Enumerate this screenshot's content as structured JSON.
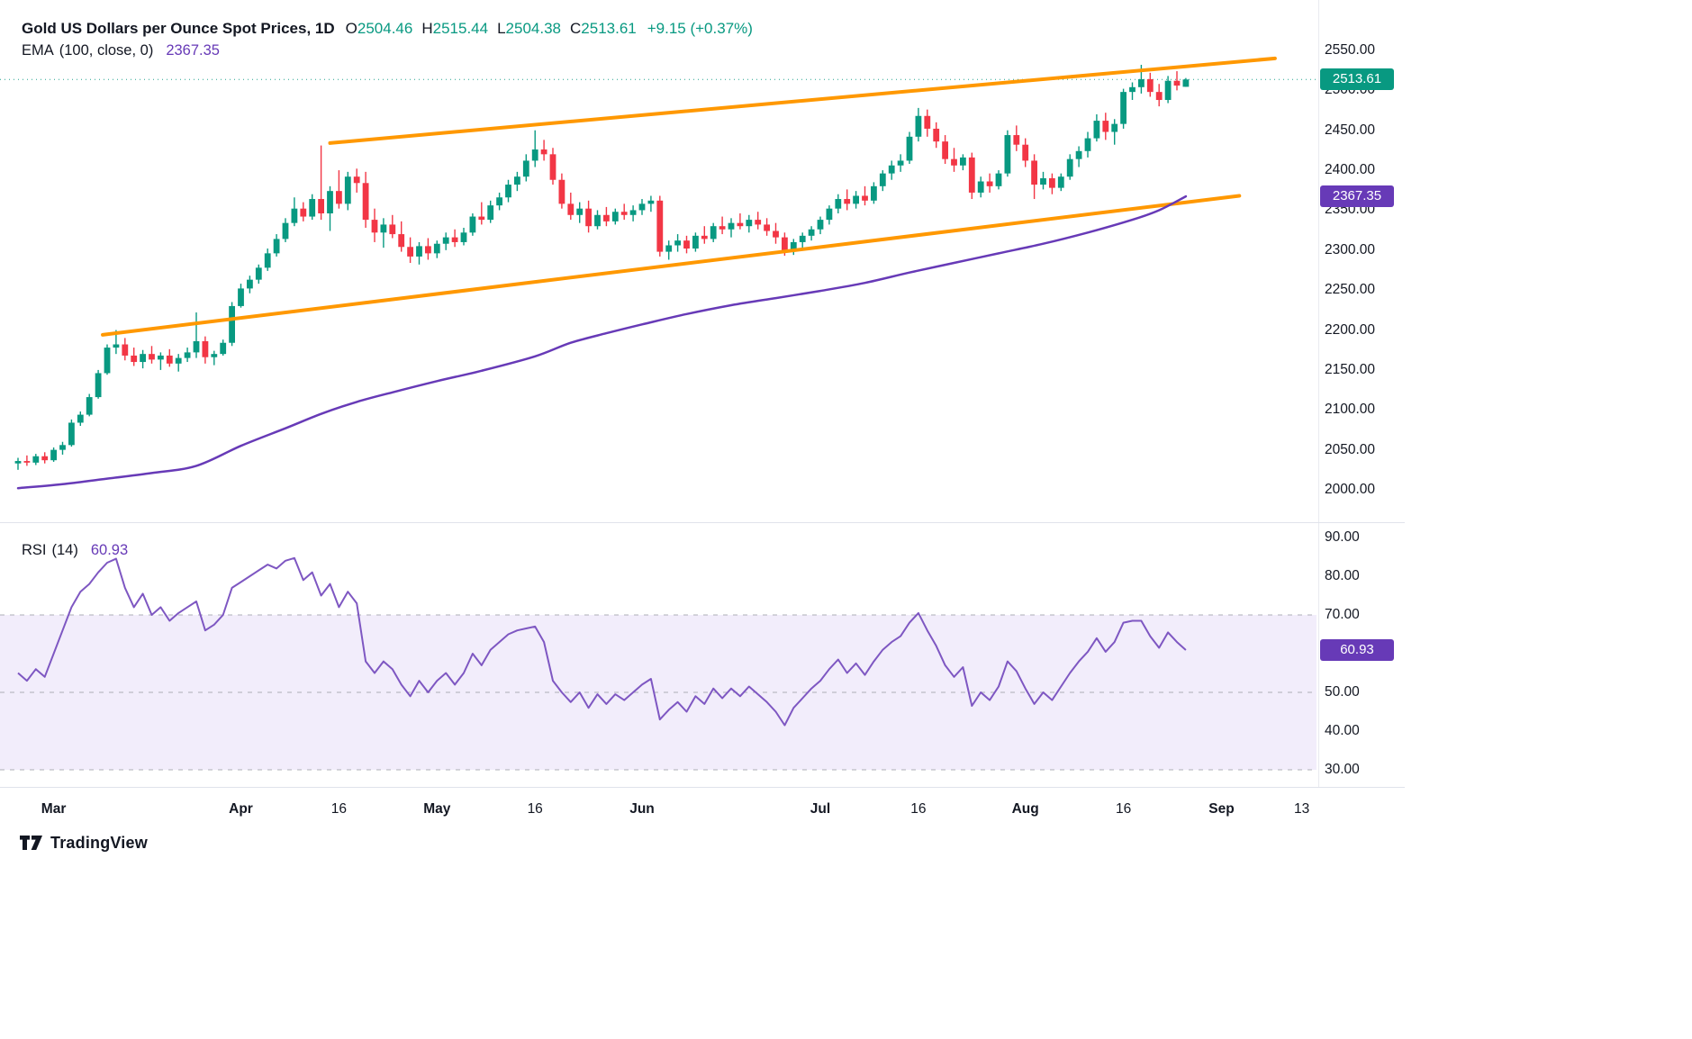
{
  "header": {
    "title": "Gold US Dollars per Ounce Spot Prices, 1D",
    "ohlc": [
      {
        "key": "O",
        "value": "2504.46"
      },
      {
        "key": "H",
        "value": "2515.44"
      },
      {
        "key": "L",
        "value": "2504.38"
      },
      {
        "key": "C",
        "value": "2513.61"
      }
    ],
    "change": "+9.15 (+0.37%)"
  },
  "ema_indicator": {
    "name": "EMA",
    "params": "(100, close, 0)",
    "value": "2367.35"
  },
  "rsi_indicator": {
    "name": "RSI",
    "params": "(14)",
    "value": "60.93"
  },
  "badges": {
    "price": {
      "text": "2513.61"
    },
    "ema": {
      "text": "2367.35"
    },
    "rsi": {
      "text": "60.93"
    }
  },
  "watermark": "TradingView",
  "colors": {
    "up": "#089981",
    "down": "#f23645",
    "ema": "#673ab7",
    "rsi": "#7e57c2",
    "band": "#f2edfb",
    "trendline": "#ff9800",
    "dashed_line": "#a0a3ab",
    "separator": "#e0e3eb",
    "axis_text": "#131722",
    "badge_purple": "#673ab7"
  },
  "chart_data": {
    "type": "candlestick",
    "title": "Gold US Dollars per Ounce Spot Prices",
    "interval": "1D",
    "current_price": 2513.61,
    "candles": [
      [
        2033,
        2040,
        2025,
        2036
      ],
      [
        2036,
        2043,
        2030,
        2034
      ],
      [
        2034,
        2045,
        2031,
        2042
      ],
      [
        2042,
        2047,
        2033,
        2037
      ],
      [
        2037,
        2053,
        2035,
        2050
      ],
      [
        2050,
        2060,
        2044,
        2056
      ],
      [
        2056,
        2088,
        2054,
        2084
      ],
      [
        2084,
        2098,
        2080,
        2094
      ],
      [
        2094,
        2120,
        2092,
        2116
      ],
      [
        2116,
        2150,
        2114,
        2146
      ],
      [
        2146,
        2182,
        2144,
        2178
      ],
      [
        2178,
        2200,
        2170,
        2182
      ],
      [
        2182,
        2190,
        2162,
        2168
      ],
      [
        2168,
        2178,
        2155,
        2160
      ],
      [
        2160,
        2175,
        2152,
        2170
      ],
      [
        2170,
        2180,
        2158,
        2163
      ],
      [
        2163,
        2172,
        2150,
        2168
      ],
      [
        2168,
        2176,
        2154,
        2158
      ],
      [
        2158,
        2170,
        2148,
        2165
      ],
      [
        2165,
        2178,
        2160,
        2172
      ],
      [
        2172,
        2222,
        2165,
        2186
      ],
      [
        2186,
        2192,
        2158,
        2166
      ],
      [
        2166,
        2174,
        2156,
        2170
      ],
      [
        2170,
        2188,
        2168,
        2184
      ],
      [
        2184,
        2235,
        2180,
        2230
      ],
      [
        2230,
        2258,
        2228,
        2252
      ],
      [
        2252,
        2268,
        2246,
        2263
      ],
      [
        2263,
        2282,
        2258,
        2278
      ],
      [
        2278,
        2302,
        2274,
        2296
      ],
      [
        2296,
        2320,
        2292,
        2314
      ],
      [
        2314,
        2340,
        2310,
        2334
      ],
      [
        2334,
        2366,
        2330,
        2352
      ],
      [
        2352,
        2360,
        2336,
        2342
      ],
      [
        2342,
        2370,
        2338,
        2364
      ],
      [
        2364,
        2431,
        2338,
        2346
      ],
      [
        2346,
        2380,
        2324,
        2374
      ],
      [
        2374,
        2400,
        2352,
        2358
      ],
      [
        2358,
        2398,
        2350,
        2392
      ],
      [
        2392,
        2402,
        2372,
        2384
      ],
      [
        2384,
        2398,
        2328,
        2338
      ],
      [
        2338,
        2352,
        2310,
        2322
      ],
      [
        2322,
        2340,
        2303,
        2332
      ],
      [
        2332,
        2344,
        2315,
        2320
      ],
      [
        2320,
        2336,
        2298,
        2304
      ],
      [
        2304,
        2316,
        2284,
        2292
      ],
      [
        2292,
        2310,
        2282,
        2305
      ],
      [
        2305,
        2315,
        2288,
        2296
      ],
      [
        2296,
        2312,
        2290,
        2308
      ],
      [
        2308,
        2322,
        2300,
        2316
      ],
      [
        2316,
        2326,
        2304,
        2310
      ],
      [
        2310,
        2328,
        2306,
        2322
      ],
      [
        2322,
        2346,
        2318,
        2342
      ],
      [
        2342,
        2360,
        2332,
        2338
      ],
      [
        2338,
        2362,
        2334,
        2356
      ],
      [
        2356,
        2372,
        2350,
        2366
      ],
      [
        2366,
        2388,
        2360,
        2382
      ],
      [
        2382,
        2398,
        2374,
        2392
      ],
      [
        2392,
        2420,
        2386,
        2412
      ],
      [
        2412,
        2450,
        2404,
        2426
      ],
      [
        2426,
        2438,
        2412,
        2420
      ],
      [
        2420,
        2428,
        2382,
        2388
      ],
      [
        2388,
        2396,
        2352,
        2358
      ],
      [
        2358,
        2372,
        2338,
        2344
      ],
      [
        2344,
        2360,
        2334,
        2352
      ],
      [
        2352,
        2362,
        2322,
        2330
      ],
      [
        2330,
        2350,
        2326,
        2344
      ],
      [
        2344,
        2354,
        2330,
        2336
      ],
      [
        2336,
        2352,
        2332,
        2348
      ],
      [
        2348,
        2358,
        2338,
        2344
      ],
      [
        2344,
        2356,
        2336,
        2350
      ],
      [
        2350,
        2364,
        2344,
        2358
      ],
      [
        2358,
        2368,
        2348,
        2362
      ],
      [
        2362,
        2368,
        2292,
        2298
      ],
      [
        2298,
        2312,
        2288,
        2306
      ],
      [
        2306,
        2320,
        2298,
        2312
      ],
      [
        2312,
        2318,
        2296,
        2302
      ],
      [
        2302,
        2322,
        2298,
        2318
      ],
      [
        2318,
        2330,
        2308,
        2314
      ],
      [
        2314,
        2334,
        2310,
        2330
      ],
      [
        2330,
        2342,
        2320,
        2326
      ],
      [
        2326,
        2340,
        2316,
        2334
      ],
      [
        2334,
        2346,
        2326,
        2330
      ],
      [
        2330,
        2344,
        2322,
        2338
      ],
      [
        2338,
        2348,
        2326,
        2332
      ],
      [
        2332,
        2340,
        2318,
        2324
      ],
      [
        2324,
        2334,
        2308,
        2316
      ],
      [
        2316,
        2322,
        2293,
        2300
      ],
      [
        2300,
        2314,
        2294,
        2310
      ],
      [
        2310,
        2322,
        2302,
        2318
      ],
      [
        2318,
        2330,
        2312,
        2326
      ],
      [
        2326,
        2342,
        2320,
        2338
      ],
      [
        2338,
        2356,
        2332,
        2352
      ],
      [
        2352,
        2370,
        2346,
        2364
      ],
      [
        2364,
        2376,
        2350,
        2358
      ],
      [
        2358,
        2374,
        2352,
        2368
      ],
      [
        2368,
        2380,
        2356,
        2362
      ],
      [
        2362,
        2385,
        2358,
        2380
      ],
      [
        2380,
        2400,
        2374,
        2396
      ],
      [
        2396,
        2412,
        2388,
        2406
      ],
      [
        2406,
        2420,
        2398,
        2412
      ],
      [
        2412,
        2448,
        2408,
        2442
      ],
      [
        2442,
        2478,
        2436,
        2468
      ],
      [
        2468,
        2476,
        2442,
        2452
      ],
      [
        2452,
        2460,
        2428,
        2436
      ],
      [
        2436,
        2444,
        2408,
        2414
      ],
      [
        2414,
        2428,
        2398,
        2406
      ],
      [
        2406,
        2420,
        2400,
        2416
      ],
      [
        2416,
        2422,
        2364,
        2372
      ],
      [
        2372,
        2392,
        2366,
        2386
      ],
      [
        2386,
        2396,
        2372,
        2380
      ],
      [
        2380,
        2400,
        2376,
        2396
      ],
      [
        2396,
        2450,
        2392,
        2444
      ],
      [
        2444,
        2456,
        2424,
        2432
      ],
      [
        2432,
        2440,
        2404,
        2412
      ],
      [
        2412,
        2420,
        2364,
        2382
      ],
      [
        2382,
        2398,
        2376,
        2390
      ],
      [
        2390,
        2396,
        2370,
        2378
      ],
      [
        2378,
        2396,
        2374,
        2392
      ],
      [
        2392,
        2420,
        2388,
        2414
      ],
      [
        2414,
        2430,
        2404,
        2424
      ],
      [
        2424,
        2448,
        2416,
        2440
      ],
      [
        2440,
        2470,
        2436,
        2462
      ],
      [
        2462,
        2472,
        2438,
        2448
      ],
      [
        2448,
        2464,
        2432,
        2458
      ],
      [
        2458,
        2502,
        2452,
        2498
      ],
      [
        2498,
        2510,
        2488,
        2504
      ],
      [
        2504,
        2532,
        2496,
        2514
      ],
      [
        2514,
        2522,
        2492,
        2498
      ],
      [
        2498,
        2508,
        2480,
        2488
      ],
      [
        2488,
        2518,
        2484,
        2512
      ],
      [
        2512,
        2524,
        2500,
        2506
      ],
      [
        2504.46,
        2515.44,
        2504.38,
        2513.61
      ]
    ],
    "ema_anchors": [
      [
        0,
        2002
      ],
      [
        5,
        2007
      ],
      [
        10,
        2014
      ],
      [
        15,
        2021
      ],
      [
        20,
        2030
      ],
      [
        25,
        2055
      ],
      [
        30,
        2077
      ],
      [
        34,
        2095
      ],
      [
        38,
        2110
      ],
      [
        42,
        2122
      ],
      [
        47,
        2136
      ],
      [
        52,
        2149
      ],
      [
        58,
        2167
      ],
      [
        62,
        2184
      ],
      [
        66,
        2196
      ],
      [
        70,
        2207
      ],
      [
        75,
        2220
      ],
      [
        80,
        2231
      ],
      [
        85,
        2240
      ],
      [
        90,
        2249
      ],
      [
        95,
        2259
      ],
      [
        100,
        2272
      ],
      [
        105,
        2284
      ],
      [
        110,
        2296
      ],
      [
        115,
        2308
      ],
      [
        120,
        2322
      ],
      [
        125,
        2338
      ],
      [
        128,
        2350
      ],
      [
        131,
        2367.35
      ]
    ],
    "rsi_values": [
      55,
      53,
      56,
      54,
      60,
      66,
      72,
      76,
      78,
      81,
      83.5,
      84.5,
      77,
      72,
      75.5,
      70,
      72,
      68.5,
      70.5,
      72,
      73.5,
      66,
      67.5,
      70,
      77,
      78.5,
      80,
      81.5,
      83,
      82,
      84,
      84.7,
      79,
      81,
      75,
      78,
      72,
      76,
      73,
      58,
      55,
      58,
      56,
      52,
      49,
      53,
      50,
      53,
      55,
      52,
      55,
      60,
      57,
      61,
      63,
      65,
      66,
      66.5,
      67,
      63,
      53,
      50,
      47.5,
      50,
      46,
      49.5,
      47,
      49.5,
      48,
      50,
      52,
      53.5,
      43,
      45.5,
      47.5,
      45,
      49,
      47,
      51,
      48.5,
      51,
      49,
      51.5,
      49.5,
      47.5,
      45,
      41.5,
      46,
      48.5,
      51,
      53,
      56,
      58.5,
      55,
      57.5,
      54.5,
      58,
      61,
      63,
      64.5,
      68,
      70.5,
      66,
      62,
      57,
      54,
      56.5,
      46.5,
      50,
      48,
      51.5,
      58,
      55.5,
      51,
      47,
      50,
      48,
      51.5,
      55,
      58,
      60.5,
      64,
      60.5,
      63,
      68,
      68.5,
      68.5,
      64.5,
      61.5,
      65.5,
      63,
      60.93
    ],
    "trendlines": [
      {
        "from": [
          9.5,
          2194
        ],
        "to": [
          137,
          2368
        ]
      },
      {
        "from": [
          35,
          2434
        ],
        "to": [
          141,
          2540
        ]
      }
    ],
    "price_axis": {
      "ticks": [
        2550,
        2500,
        2450,
        2400,
        2350,
        2300,
        2250,
        2200,
        2150,
        2100,
        2050,
        2000
      ]
    },
    "rsi_axis": {
      "ticks": [
        90,
        80,
        70,
        60,
        50,
        40,
        30
      ],
      "band": [
        30,
        70
      ],
      "dashed": [
        70,
        50,
        30
      ]
    },
    "time_axis": [
      {
        "label": "Mar",
        "i": 4,
        "major": true
      },
      {
        "label": "Apr",
        "i": 25,
        "major": true
      },
      {
        "label": "16",
        "i": 36,
        "major": false
      },
      {
        "label": "May",
        "i": 47,
        "major": true
      },
      {
        "label": "16",
        "i": 58,
        "major": false
      },
      {
        "label": "Jun",
        "i": 70,
        "major": true
      },
      {
        "label": "Jul",
        "i": 90,
        "major": true
      },
      {
        "label": "16",
        "i": 101,
        "major": false
      },
      {
        "label": "Aug",
        "i": 113,
        "major": true
      },
      {
        "label": "16",
        "i": 124,
        "major": false
      },
      {
        "label": "Sep",
        "i": 135,
        "major": true
      },
      {
        "label": "13",
        "i": 144,
        "major": false
      }
    ]
  }
}
